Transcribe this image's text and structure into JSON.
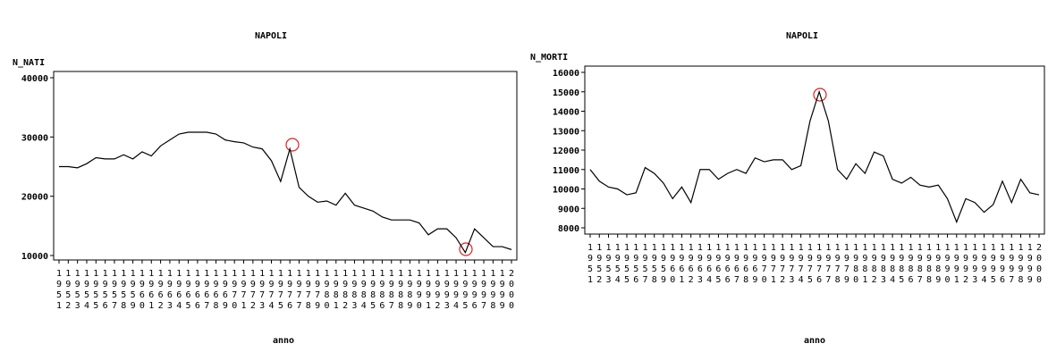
{
  "chart_data": [
    {
      "type": "line",
      "title": "NAPOLI",
      "ylabel": "N_NATI",
      "xlabel": "anno",
      "color": "#000000",
      "categories": [
        "1951",
        "1952",
        "1953",
        "1954",
        "1955",
        "1956",
        "1957",
        "1958",
        "1959",
        "1960",
        "1961",
        "1962",
        "1963",
        "1964",
        "1965",
        "1966",
        "1967",
        "1968",
        "1969",
        "1970",
        "1971",
        "1972",
        "1973",
        "1974",
        "1975",
        "1976",
        "1977",
        "1978",
        "1979",
        "1980",
        "1981",
        "1982",
        "1983",
        "1984",
        "1985",
        "1986",
        "1987",
        "1988",
        "1989",
        "1990",
        "1991",
        "1992",
        "1993",
        "1994",
        "1995",
        "1996",
        "1997",
        "1998",
        "1999",
        "2000"
      ],
      "values": [
        25000,
        25000,
        24800,
        25500,
        26500,
        26300,
        26300,
        27000,
        26300,
        27500,
        26800,
        28500,
        29500,
        30500,
        30800,
        30800,
        30800,
        30500,
        29500,
        29200,
        29000,
        28300,
        28000,
        26000,
        22500,
        28000,
        21500,
        20000,
        19000,
        19200,
        18500,
        20500,
        18500,
        18000,
        17500,
        16500,
        16000,
        16000,
        16000,
        15500,
        13500,
        14500,
        14500,
        13000,
        10500,
        14500,
        13000,
        11500,
        11500,
        11000
      ],
      "ylim": [
        10000,
        40000
      ],
      "yticks": [
        10000,
        20000,
        30000,
        40000
      ]
    },
    {
      "type": "line",
      "title": "NAPOLI",
      "ylabel": "N_MORTI",
      "xlabel": "anno",
      "color": "#000000",
      "categories": [
        "1951",
        "1952",
        "1953",
        "1954",
        "1955",
        "1956",
        "1957",
        "1958",
        "1959",
        "1960",
        "1961",
        "1962",
        "1963",
        "1964",
        "1965",
        "1966",
        "1967",
        "1968",
        "1969",
        "1970",
        "1971",
        "1972",
        "1973",
        "1974",
        "1975",
        "1976",
        "1977",
        "1978",
        "1979",
        "1980",
        "1981",
        "1982",
        "1983",
        "1984",
        "1985",
        "1986",
        "1987",
        "1988",
        "1989",
        "1990",
        "1991",
        "1992",
        "1993",
        "1994",
        "1995",
        "1996",
        "1997",
        "1998",
        "1999",
        "2000"
      ],
      "values": [
        11000,
        10400,
        10100,
        10000,
        9700,
        9800,
        11100,
        10800,
        10300,
        9500,
        10100,
        9300,
        11000,
        11000,
        10500,
        10800,
        11000,
        10800,
        11600,
        11400,
        11500,
        11500,
        11000,
        11200,
        13500,
        15000,
        13500,
        11000,
        10500,
        11300,
        10800,
        11900,
        11700,
        10500,
        10300,
        10600,
        10200,
        10100,
        10200,
        9500,
        8300,
        9500,
        9300,
        8800,
        9200,
        10400,
        9300,
        10500,
        9800,
        9700
      ],
      "ylim": [
        8000,
        16000
      ],
      "yticks": [
        8000,
        9000,
        10000,
        11000,
        12000,
        13000,
        14000,
        15000,
        16000
      ]
    }
  ]
}
